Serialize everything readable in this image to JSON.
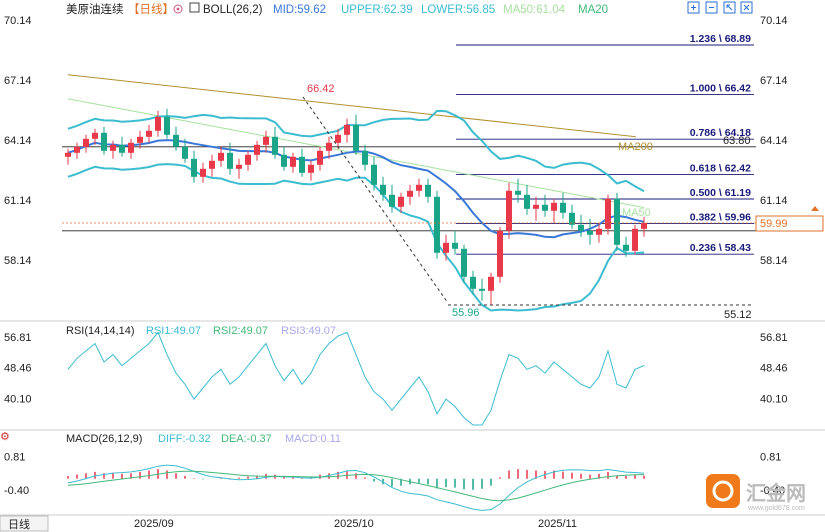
{
  "header": {
    "symbol": "美原油连续",
    "period": "【日线】",
    "boll_label": "BOLL(26,2)",
    "mid": "MID:59.62",
    "upper": "UPPER:62.39",
    "lower": "LOWER:56.85",
    "ma50": "MA50:61.04",
    "ma20": "MA20"
  },
  "colors": {
    "up": "#e8394a",
    "down": "#1aa589",
    "mid_line": "#3a78d8",
    "band_line": "#3cbcd0",
    "ma20_line": "#43b97a",
    "ma50_line": "#a8e0a0",
    "ma200_line": "#b3902e",
    "rsi1": "#3cbcd0",
    "rsi2": "#43b97a",
    "rsi3": "#a8a8e8",
    "diff": "#3cbcd0",
    "dea": "#43b97a"
  },
  "price_axis": {
    "min": 55.12,
    "max": 70.14,
    "ticks": [
      "70.14",
      "67.14",
      "64.14",
      "61.14",
      "58.14"
    ],
    "current": "59.99",
    "current_value": 59.99
  },
  "annotations": {
    "high_label": "66.42",
    "low_label": "55.96",
    "bottom_right_label": "55.12",
    "ma200_label": "MA200",
    "ma200_value": "63.80",
    "ma50_label": "MA50"
  },
  "fib_levels": [
    {
      "label": "1.236 \\ 68.89",
      "value": 68.89
    },
    {
      "label": "1.000 \\ 66.42",
      "value": 66.42
    },
    {
      "label": "0.786 \\ 64.18",
      "value": 64.18
    },
    {
      "label": "0.618 \\ 62.42",
      "value": 62.42
    },
    {
      "label": "0.500 \\ 61.19",
      "value": 61.19
    },
    {
      "label": "0.382 \\ 59.96",
      "value": 59.96
    },
    {
      "label": "0.236 \\ 58.43",
      "value": 58.43
    }
  ],
  "rsi": {
    "label": "RSI(14,14,14)",
    "rsi1": "RSI1:49.07",
    "rsi2": "RSI2:49.07",
    "rsi3": "RSI3:49.07",
    "ticks": [
      "56.81",
      "48.46",
      "40.10"
    ],
    "range": [
      33,
      60
    ]
  },
  "macd": {
    "label": "MACD(26,12,9)",
    "diff": "DIFF:-0.32",
    "dea": "DEA:-0.37",
    "macd": "MACD:0.11",
    "ticks": [
      "0.81",
      "-0.40"
    ],
    "range": [
      -1.2,
      1.4
    ]
  },
  "x_axis": {
    "labels": [
      "2025/09",
      "2025/10",
      "2025/11"
    ],
    "period_button": "日线"
  },
  "watermark": {
    "brand": "汇金网",
    "url": "www.gold678.com"
  },
  "chart_data": {
    "type": "candlestick",
    "title": "美原油连续 日线",
    "candles": [
      [
        63.3,
        63.7,
        62.9,
        63.5
      ],
      [
        63.5,
        64.0,
        63.2,
        63.8
      ],
      [
        63.8,
        64.4,
        63.5,
        64.2
      ],
      [
        64.2,
        64.7,
        63.9,
        64.5
      ],
      [
        64.5,
        64.8,
        63.4,
        63.6
      ],
      [
        63.6,
        64.1,
        63.2,
        63.9
      ],
      [
        63.9,
        64.3,
        63.3,
        63.5
      ],
      [
        63.5,
        64.2,
        63.2,
        64.0
      ],
      [
        64.0,
        64.6,
        63.7,
        64.3
      ],
      [
        64.3,
        64.9,
        64.0,
        64.6
      ],
      [
        64.6,
        65.6,
        64.3,
        65.3
      ],
      [
        65.3,
        65.7,
        64.2,
        64.4
      ],
      [
        64.4,
        64.8,
        63.6,
        63.8
      ],
      [
        63.8,
        64.2,
        63.0,
        63.2
      ],
      [
        63.2,
        63.6,
        62.0,
        62.3
      ],
      [
        62.3,
        63.0,
        62.0,
        62.7
      ],
      [
        62.7,
        63.4,
        62.3,
        63.1
      ],
      [
        63.1,
        63.8,
        62.8,
        63.5
      ],
      [
        63.5,
        64.0,
        62.4,
        62.7
      ],
      [
        62.7,
        63.2,
        62.2,
        62.9
      ],
      [
        62.9,
        63.6,
        62.6,
        63.4
      ],
      [
        63.4,
        64.1,
        63.1,
        63.9
      ],
      [
        63.9,
        64.6,
        63.5,
        64.3
      ],
      [
        64.3,
        64.8,
        63.2,
        63.4
      ],
      [
        63.4,
        63.8,
        62.6,
        62.8
      ],
      [
        62.8,
        63.5,
        62.5,
        63.3
      ],
      [
        63.3,
        63.7,
        62.3,
        62.5
      ],
      [
        62.5,
        63.1,
        62.1,
        62.9
      ],
      [
        62.9,
        63.8,
        62.6,
        63.6
      ],
      [
        63.6,
        64.3,
        63.2,
        64.0
      ],
      [
        64.0,
        64.7,
        63.7,
        64.4
      ],
      [
        64.4,
        65.2,
        64.0,
        64.9
      ],
      [
        64.9,
        65.4,
        63.4,
        63.6
      ],
      [
        63.6,
        63.9,
        62.6,
        62.9
      ],
      [
        62.9,
        63.3,
        61.6,
        61.9
      ],
      [
        61.9,
        62.3,
        61.1,
        61.4
      ],
      [
        61.4,
        61.9,
        60.5,
        60.8
      ],
      [
        60.8,
        61.5,
        60.5,
        61.3
      ],
      [
        61.3,
        61.9,
        60.9,
        61.6
      ],
      [
        61.6,
        62.2,
        61.3,
        61.9
      ],
      [
        61.9,
        62.2,
        61.0,
        61.3
      ],
      [
        61.3,
        61.6,
        58.2,
        58.5
      ],
      [
        58.5,
        59.4,
        58.1,
        59.0
      ],
      [
        59.0,
        59.6,
        58.4,
        58.7
      ],
      [
        58.7,
        58.9,
        57.0,
        57.3
      ],
      [
        57.3,
        57.6,
        56.4,
        56.7
      ],
      [
        56.7,
        57.2,
        56.1,
        56.6
      ],
      [
        56.6,
        57.5,
        55.9,
        57.3
      ],
      [
        57.3,
        59.8,
        57.0,
        59.6
      ],
      [
        59.6,
        62.0,
        59.2,
        61.6
      ],
      [
        61.6,
        62.2,
        61.0,
        61.4
      ],
      [
        61.4,
        61.9,
        60.4,
        60.7
      ],
      [
        60.7,
        61.3,
        60.1,
        60.9
      ],
      [
        60.9,
        61.4,
        60.3,
        60.6
      ],
      [
        60.6,
        61.2,
        60.0,
        61.0
      ],
      [
        61.0,
        61.5,
        60.2,
        60.5
      ],
      [
        60.5,
        60.9,
        59.7,
        59.9
      ],
      [
        59.9,
        60.4,
        59.3,
        59.6
      ],
      [
        59.6,
        60.2,
        58.9,
        59.4
      ],
      [
        59.4,
        60.0,
        59.0,
        59.7
      ],
      [
        59.7,
        61.4,
        59.4,
        61.2
      ],
      [
        61.2,
        61.5,
        58.6,
        58.9
      ],
      [
        58.9,
        59.3,
        58.3,
        58.6
      ],
      [
        58.6,
        59.9,
        58.4,
        59.7
      ],
      [
        59.7,
        60.3,
        59.3,
        59.99
      ]
    ],
    "rsi_values": [
      48,
      51,
      53,
      55,
      50,
      52,
      49,
      51,
      53,
      55,
      58,
      52,
      47,
      44,
      40,
      43,
      46,
      48,
      44,
      46,
      49,
      52,
      55,
      49,
      45,
      48,
      44,
      47,
      52,
      55,
      57,
      58,
      52,
      46,
      42,
      40,
      37,
      40,
      43,
      46,
      42,
      36,
      40,
      38,
      35,
      33,
      33,
      37,
      45,
      52,
      51,
      48,
      49,
      47,
      50,
      48,
      46,
      44,
      43,
      46,
      53,
      44,
      43,
      48,
      49.07
    ],
    "macd_bars": [
      0.1,
      0.15,
      0.2,
      0.25,
      0.2,
      0.22,
      0.18,
      0.2,
      0.25,
      0.3,
      0.35,
      0.3,
      0.2,
      0.1,
      0.02,
      -0.02,
      0.0,
      0.05,
      0.02,
      0.04,
      0.08,
      0.12,
      0.18,
      0.15,
      0.08,
      0.1,
      0.05,
      0.08,
      0.15,
      0.2,
      0.25,
      0.3,
      0.2,
      0.05,
      -0.1,
      -0.2,
      -0.28,
      -0.25,
      -0.2,
      -0.15,
      -0.2,
      -0.35,
      -0.3,
      -0.32,
      -0.38,
      -0.4,
      -0.36,
      -0.25,
      0.05,
      0.3,
      0.35,
      0.32,
      0.3,
      0.28,
      0.3,
      0.26,
      0.22,
      0.18,
      0.15,
      0.18,
      0.25,
      0.12,
      0.1,
      0.14,
      0.11
    ],
    "ylim": [
      55.12,
      70.14
    ]
  }
}
